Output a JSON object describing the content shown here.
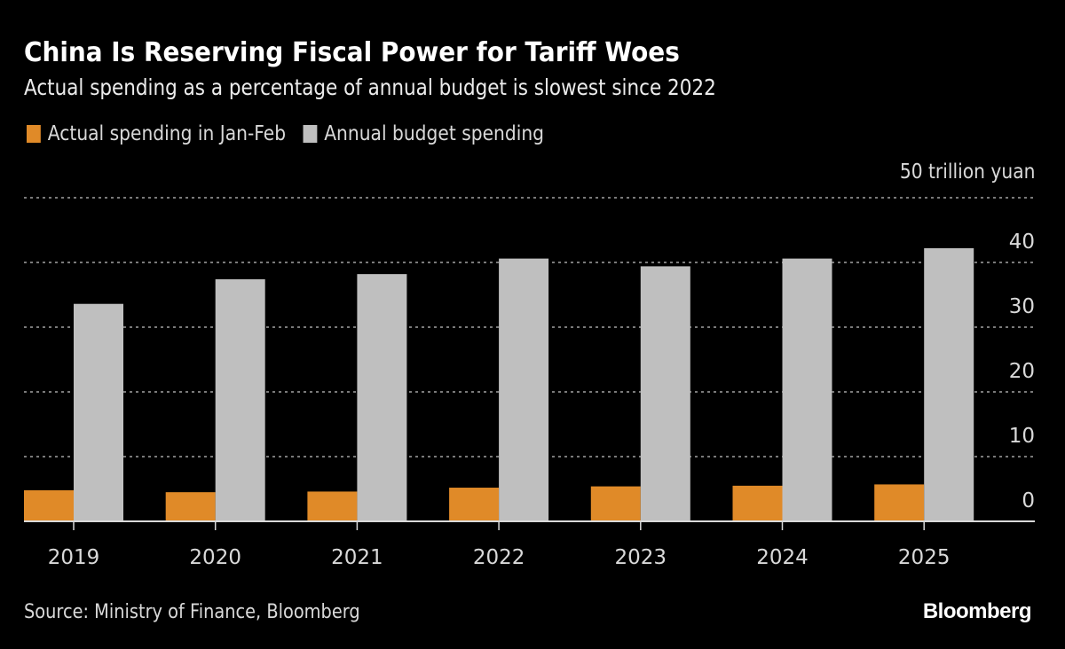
{
  "header": {
    "title": "China Is Reserving Fiscal Power for Tariff Woes",
    "subtitle": "Actual spending as a percentage of annual budget is slowest since 2022"
  },
  "legend": [
    {
      "label": "Actual spending in Jan-Feb",
      "color": "#E08A28"
    },
    {
      "label": "Annual budget spending",
      "color": "#BFBFBF"
    }
  ],
  "unit_label": "50 trillion yuan",
  "footer": {
    "source": "Source: Ministry of Finance, Bloomberg",
    "logo": "Bloomberg"
  },
  "chart_data": {
    "type": "bar",
    "title": "China Is Reserving Fiscal Power for Tariff Woes",
    "subtitle": "Actual spending as a percentage of annual budget is slowest since 2022",
    "xlabel": "",
    "ylabel": "trillion yuan",
    "categories": [
      "2019",
      "2020",
      "2021",
      "2022",
      "2023",
      "2024",
      "2025"
    ],
    "series": [
      {
        "name": "Actual spending in Jan-Feb",
        "color": "#E08A28",
        "values": [
          4.8,
          4.5,
          4.6,
          5.2,
          5.4,
          5.5,
          5.7
        ]
      },
      {
        "name": "Annual budget spending",
        "color": "#BFBFBF",
        "values": [
          33.6,
          37.4,
          38.2,
          40.6,
          39.4,
          40.6,
          42.2
        ]
      }
    ],
    "ylim": [
      0,
      50
    ],
    "yticks": [
      0,
      10,
      20,
      30,
      40,
      50
    ],
    "ytick_labels": [
      "0",
      "10",
      "20",
      "30",
      "40",
      "50 trillion yuan"
    ],
    "y_axis_side": "right",
    "grid": true,
    "legend_position": "top-left"
  }
}
